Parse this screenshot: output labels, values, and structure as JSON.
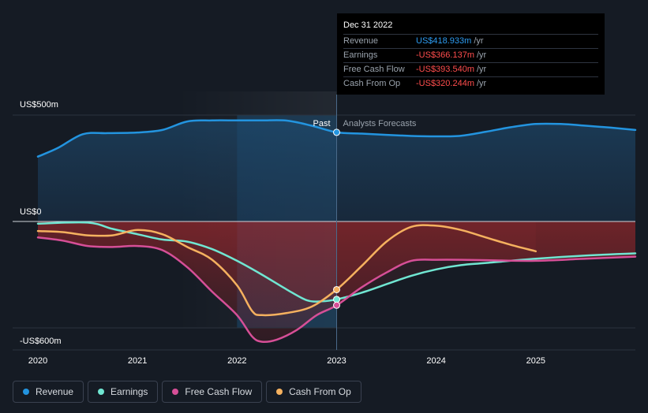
{
  "chart_data": {
    "type": "line",
    "title": "",
    "currency_unit": "US$",
    "y_labels": [
      "US$500m",
      "US$0",
      "-US$600m"
    ],
    "ylim": [
      -600,
      500
    ],
    "xlim": [
      2020,
      2026
    ],
    "x_ticks": [
      "2020",
      "2021",
      "2022",
      "2023",
      "2024",
      "2025"
    ],
    "split_labels": {
      "past": "Past",
      "forecast": "Analysts Forecasts"
    },
    "colors": {
      "revenue": "#2394df",
      "earnings": "#70e6d2",
      "free_cash_flow": "#d64f97",
      "cash_from_op": "#f5b15f",
      "grid": "#2c333e",
      "zero_line": "#cfd4da",
      "highlight": "#1e4a6e"
    },
    "series": [
      {
        "name": "Revenue",
        "key": "revenue",
        "x": [
          2020.0,
          2020.2,
          2020.45,
          2020.7,
          2021.0,
          2021.25,
          2021.5,
          2021.75,
          2022.0,
          2022.25,
          2022.5,
          2022.75,
          2023.0,
          2023.25,
          2023.5,
          2023.75,
          2024.0,
          2024.25,
          2024.5,
          2024.75,
          2025.0,
          2025.25,
          2025.5,
          2025.75,
          2026.0
        ],
        "values": [
          305,
          345,
          410,
          415,
          418,
          430,
          470,
          475,
          475,
          475,
          474,
          450,
          419,
          413,
          407,
          402,
          400,
          403,
          422,
          443,
          458,
          458,
          450,
          441,
          430
        ]
      },
      {
        "name": "Earnings",
        "key": "earnings",
        "x": [
          2020.0,
          2020.5,
          2020.75,
          2021.0,
          2021.25,
          2021.5,
          2021.75,
          2022.0,
          2022.25,
          2022.5,
          2022.7,
          2022.85,
          2023.0,
          2023.25,
          2023.5,
          2023.75,
          2024.0,
          2024.25,
          2024.5,
          2025.0,
          2025.5,
          2026.0
        ],
        "values": [
          -10,
          -5,
          -35,
          -60,
          -85,
          -95,
          -130,
          -185,
          -250,
          -320,
          -370,
          -375,
          -366,
          -335,
          -295,
          -255,
          -225,
          -205,
          -195,
          -175,
          -160,
          -150
        ]
      },
      {
        "name": "Free Cash Flow",
        "key": "free_cash_flow",
        "x": [
          2020.0,
          2020.25,
          2020.5,
          2020.75,
          2021.0,
          2021.25,
          2021.5,
          2021.75,
          2022.0,
          2022.15,
          2022.25,
          2022.4,
          2022.6,
          2022.8,
          2023.0,
          2023.25,
          2023.5,
          2023.75,
          2024.0,
          2024.25,
          2024.5,
          2025.0,
          2025.5,
          2026.0
        ],
        "values": [
          -75,
          -90,
          -115,
          -120,
          -115,
          -135,
          -215,
          -330,
          -440,
          -540,
          -565,
          -555,
          -510,
          -440,
          -394,
          -310,
          -240,
          -185,
          -180,
          -180,
          -182,
          -185,
          -175,
          -165
        ]
      },
      {
        "name": "Cash From Op",
        "key": "cash_from_op",
        "x": [
          2020.0,
          2020.25,
          2020.5,
          2020.75,
          2021.0,
          2021.25,
          2021.5,
          2021.75,
          2022.0,
          2022.15,
          2022.25,
          2022.5,
          2022.75,
          2023.0,
          2023.25,
          2023.5,
          2023.75,
          2024.0,
          2024.25,
          2024.5,
          2024.75,
          2025.0
        ],
        "values": [
          -45,
          -50,
          -65,
          -65,
          -40,
          -60,
          -120,
          -180,
          -300,
          -420,
          -440,
          -430,
          -400,
          -320,
          -210,
          -95,
          -25,
          -20,
          -40,
          -75,
          -110,
          -140
        ]
      }
    ],
    "highlight_point": {
      "date": "Dec 31 2022",
      "x": 2023.0,
      "values": {
        "revenue": 418.933,
        "earnings": -366.137,
        "free_cash_flow": -393.54,
        "cash_from_op": -320.244
      }
    }
  },
  "tooltip": {
    "date": "Dec 31 2022",
    "rows": [
      {
        "label": "Revenue",
        "value": "US$418.933m",
        "unit": "/yr"
      },
      {
        "label": "Earnings",
        "value": "-US$366.137m",
        "unit": "/yr"
      },
      {
        "label": "Free Cash Flow",
        "value": "-US$393.540m",
        "unit": "/yr"
      },
      {
        "label": "Cash From Op",
        "value": "-US$320.244m",
        "unit": "/yr"
      }
    ]
  },
  "legend": [
    {
      "label": "Revenue",
      "color": "#2394df"
    },
    {
      "label": "Earnings",
      "color": "#70e6d2"
    },
    {
      "label": "Free Cash Flow",
      "color": "#d64f97"
    },
    {
      "label": "Cash From Op",
      "color": "#f5b15f"
    }
  ]
}
